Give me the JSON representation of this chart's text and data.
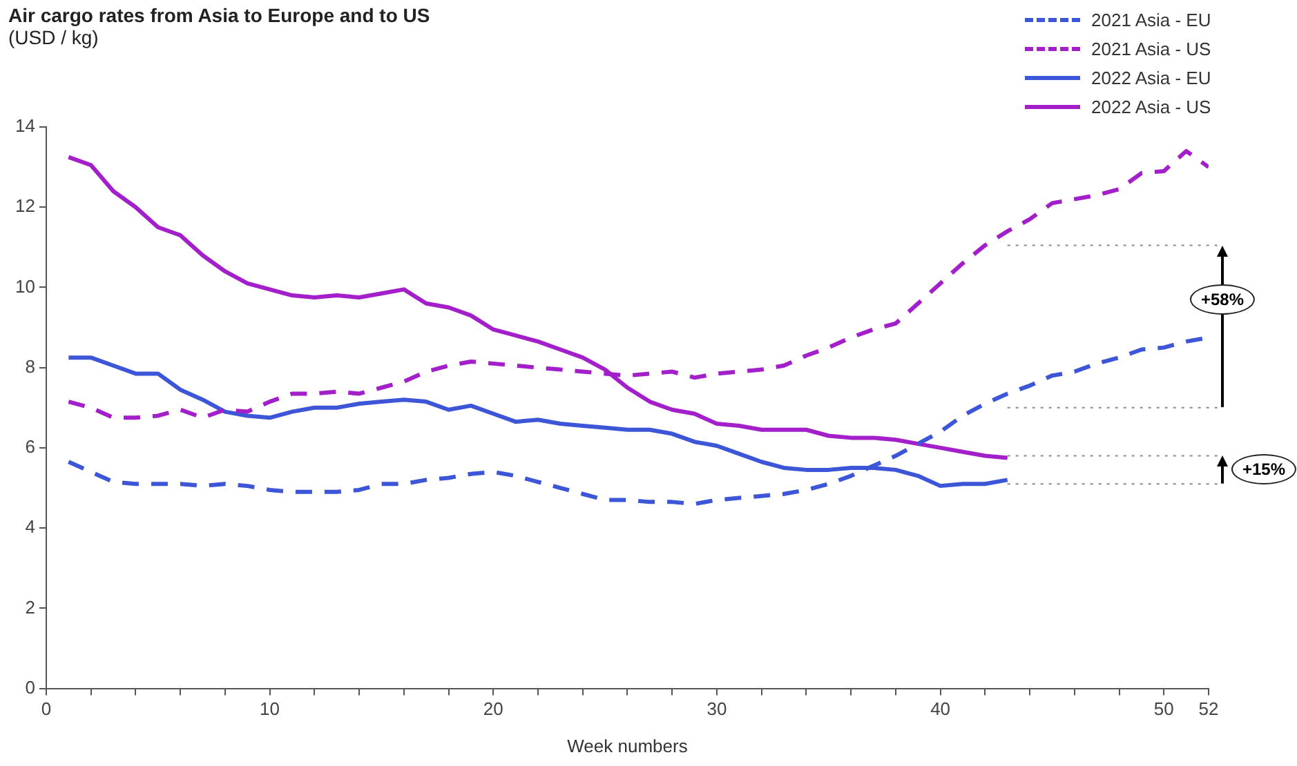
{
  "chart_data": {
    "type": "line",
    "title": "Air cargo rates from Asia to Europe and to US",
    "subtitle": "(USD / kg)",
    "xlabel": "Week numbers",
    "xlim": [
      0,
      52
    ],
    "xticks": [
      0,
      {
        "value": 2,
        "label": null
      },
      {
        "value": 4,
        "label": null
      },
      {
        "value": 6,
        "label": null
      },
      {
        "value": 8,
        "label": null
      },
      10,
      {
        "value": 12,
        "label": null
      },
      {
        "value": 14,
        "label": null
      },
      {
        "value": 16,
        "label": null
      },
      {
        "value": 18,
        "label": null
      },
      20,
      {
        "value": 22,
        "label": null
      },
      {
        "value": 24,
        "label": null
      },
      {
        "value": 26,
        "label": null
      },
      {
        "value": 28,
        "label": null
      },
      30,
      {
        "value": 32,
        "label": null
      },
      {
        "value": 34,
        "label": null
      },
      {
        "value": 36,
        "label": null
      },
      {
        "value": 38,
        "label": null
      },
      40,
      {
        "value": 42,
        "label": null
      },
      {
        "value": 44,
        "label": null
      },
      {
        "value": 46,
        "label": null
      },
      {
        "value": 48,
        "label": null
      },
      50,
      52
    ],
    "ylim": [
      0,
      14
    ],
    "yticks": [
      0,
      2,
      4,
      6,
      8,
      10,
      12,
      14
    ],
    "grid": false,
    "legend": "top right",
    "marker": "none",
    "series": [
      {
        "name": "2021 Asia - EU",
        "color": "#3d56d8",
        "line_style": "dashed",
        "x": [
          1,
          2,
          3,
          4,
          5,
          6,
          7,
          8,
          9,
          10,
          11,
          12,
          13,
          14,
          15,
          16,
          17,
          18,
          19,
          20,
          21,
          22,
          23,
          24,
          25,
          26,
          27,
          28,
          29,
          30,
          31,
          32,
          33,
          34,
          35,
          36,
          37,
          38,
          39,
          40,
          41,
          42,
          43,
          44,
          45,
          46,
          47,
          48,
          49,
          50,
          51,
          52
        ],
        "values": [
          5.65,
          5.4,
          5.15,
          5.1,
          5.1,
          5.1,
          5.05,
          5.1,
          5.05,
          4.95,
          4.9,
          4.9,
          4.9,
          4.95,
          5.1,
          5.1,
          5.2,
          5.25,
          5.35,
          5.4,
          5.3,
          5.15,
          5.0,
          4.85,
          4.7,
          4.7,
          4.65,
          4.65,
          4.6,
          4.7,
          4.75,
          4.8,
          4.85,
          4.95,
          5.1,
          5.3,
          5.55,
          5.8,
          6.1,
          6.4,
          6.8,
          7.1,
          7.35,
          7.55,
          7.8,
          7.9,
          8.1,
          8.25,
          8.45,
          8.5,
          8.65,
          8.75
        ]
      },
      {
        "name": "2021 Asia - US",
        "color": "#a31fc9",
        "line_style": "dashed",
        "x": [
          1,
          2,
          3,
          4,
          5,
          6,
          7,
          8,
          9,
          10,
          11,
          12,
          13,
          14,
          15,
          16,
          17,
          18,
          19,
          20,
          21,
          22,
          23,
          24,
          25,
          26,
          27,
          28,
          29,
          30,
          31,
          32,
          33,
          34,
          35,
          36,
          37,
          38,
          39,
          40,
          41,
          42,
          43,
          44,
          45,
          46,
          47,
          48,
          49,
          50,
          51,
          52
        ],
        "values": [
          7.15,
          7.0,
          6.75,
          6.75,
          6.8,
          6.95,
          6.75,
          6.95,
          6.9,
          7.15,
          7.35,
          7.35,
          7.4,
          7.35,
          7.5,
          7.65,
          7.9,
          8.05,
          8.15,
          8.1,
          8.05,
          8.0,
          7.95,
          7.9,
          7.85,
          7.8,
          7.85,
          7.9,
          7.75,
          7.85,
          7.9,
          7.95,
          8.05,
          8.3,
          8.5,
          8.75,
          8.95,
          9.1,
          9.6,
          10.1,
          10.6,
          11.05,
          11.4,
          11.7,
          12.1,
          12.2,
          12.3,
          12.45,
          12.85,
          12.9,
          13.4,
          13.0
        ]
      },
      {
        "name": "2022 Asia - EU",
        "color": "#3d56d8",
        "line_style": "solid",
        "x": [
          1,
          2,
          3,
          4,
          5,
          6,
          7,
          8,
          9,
          10,
          11,
          12,
          13,
          14,
          15,
          16,
          17,
          18,
          19,
          20,
          21,
          22,
          23,
          24,
          25,
          26,
          27,
          28,
          29,
          30,
          31,
          32,
          33,
          34,
          35,
          36,
          37,
          38,
          39,
          40,
          41,
          42,
          43
        ],
        "values": [
          8.25,
          8.25,
          8.05,
          7.85,
          7.85,
          7.45,
          7.2,
          6.9,
          6.8,
          6.75,
          6.9,
          7.0,
          7.0,
          7.1,
          7.15,
          7.2,
          7.15,
          6.95,
          7.05,
          6.85,
          6.65,
          6.7,
          6.6,
          6.55,
          6.5,
          6.45,
          6.45,
          6.35,
          6.15,
          6.05,
          5.85,
          5.65,
          5.5,
          5.45,
          5.45,
          5.5,
          5.5,
          5.45,
          5.3,
          5.05,
          5.1,
          5.1,
          5.2
        ]
      },
      {
        "name": "2022 Asia - US",
        "color": "#a31fc9",
        "line_style": "solid",
        "x": [
          1,
          2,
          3,
          4,
          5,
          6,
          7,
          8,
          9,
          10,
          11,
          12,
          13,
          14,
          15,
          16,
          17,
          18,
          19,
          20,
          21,
          22,
          23,
          24,
          25,
          26,
          27,
          28,
          29,
          30,
          31,
          32,
          33,
          34,
          35,
          36,
          37,
          38,
          39,
          40,
          41,
          42,
          43
        ],
        "values": [
          13.25,
          13.05,
          12.4,
          12.0,
          11.5,
          11.3,
          10.8,
          10.4,
          10.1,
          9.95,
          9.8,
          9.75,
          9.8,
          9.75,
          9.85,
          9.95,
          9.6,
          9.5,
          9.3,
          8.95,
          8.8,
          8.65,
          8.45,
          8.25,
          7.95,
          7.5,
          7.15,
          6.95,
          6.85,
          6.6,
          6.55,
          6.45,
          6.45,
          6.45,
          6.3,
          6.25,
          6.25,
          6.2,
          6.1,
          6.0,
          5.9,
          5.8,
          5.75
        ]
      }
    ],
    "ref_lines": [
      {
        "axis": "y",
        "value": 11.05,
        "color": "#888888",
        "line_style": "dotted"
      },
      {
        "axis": "y",
        "value": 7.0,
        "color": "#888888",
        "line_style": "dotted"
      },
      {
        "axis": "y",
        "value": 5.8,
        "color": "#888888",
        "line_style": "dotted"
      },
      {
        "axis": "y",
        "value": 5.1,
        "color": "#888888",
        "line_style": "dotted"
      }
    ],
    "annotations": [
      "+58%",
      "+15%"
    ]
  }
}
